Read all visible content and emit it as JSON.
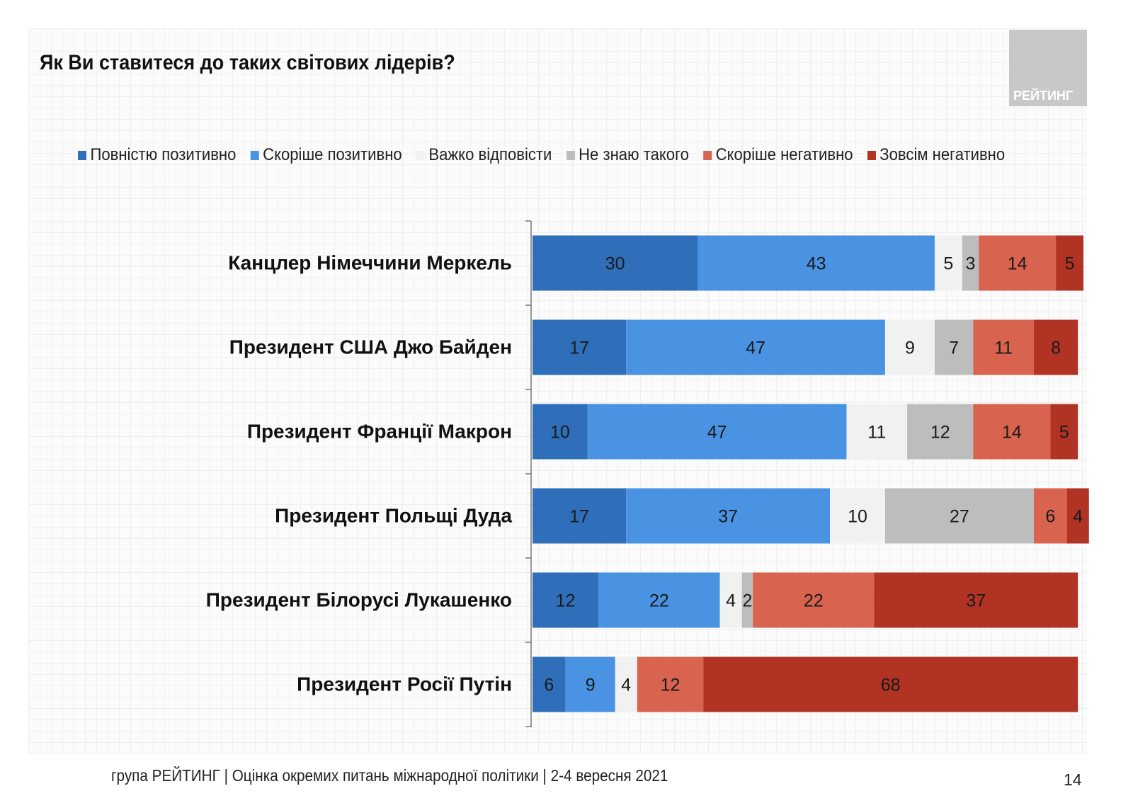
{
  "title": "Як Ви ставитеся до таких світових лідерів?",
  "logo_text": "РЕЙТИНГ",
  "footer": "група РЕЙТИНГ | Оцінка окремих питань міжнародної політики | 2-4 вересня 2021",
  "page_number": "14",
  "chart_data": {
    "type": "bar",
    "orientation": "horizontal",
    "stacked": true,
    "xlim": [
      0,
      100
    ],
    "legend_position": "top",
    "categories": [
      "Канцлер Німеччини Меркель",
      "Президент США Джо Байден",
      "Президент Франції Макрон",
      "Президент Польщі Дуда",
      "Президент Білорусі Лукашенко",
      "Президент Росії Путін"
    ],
    "series": [
      {
        "name": "Повністю позитивно",
        "color": "#2f6eb8",
        "values": [
          30,
          17,
          10,
          17,
          12,
          6
        ]
      },
      {
        "name": "Скоріше позитивно",
        "color": "#4a92e2",
        "values": [
          43,
          47,
          47,
          37,
          22,
          9
        ]
      },
      {
        "name": "Важко відповісти",
        "color": "#f1f1f1",
        "values": [
          5,
          9,
          11,
          10,
          4,
          4
        ]
      },
      {
        "name": "Не знаю такого",
        "color": "#bdbdbd",
        "values": [
          3,
          7,
          12,
          27,
          2,
          0
        ]
      },
      {
        "name": "Скоріше негативно",
        "color": "#d8634e",
        "values": [
          14,
          11,
          14,
          6,
          22,
          12
        ]
      },
      {
        "name": "Зовсім негативно",
        "color": "#b03324",
        "values": [
          5,
          8,
          5,
          4,
          37,
          68
        ]
      }
    ]
  }
}
